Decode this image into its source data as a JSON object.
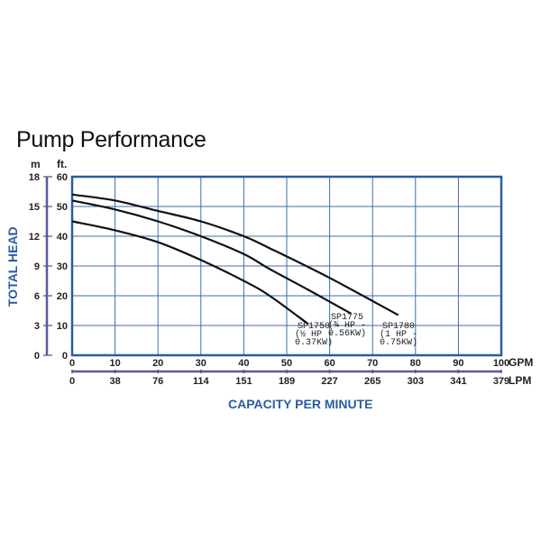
{
  "chart_data": {
    "type": "line",
    "title": "Pump Performance",
    "xlabel": "CAPACITY PER MINUTE",
    "ylabel": "TOTAL HEAD",
    "x_unit": "GPM",
    "x2_unit": "LPM",
    "y_unit": "ft.",
    "y2_unit": "m",
    "xlim": [
      0,
      100
    ],
    "ylim": [
      0,
      60
    ],
    "grid": true,
    "x_ticks": [
      0,
      10,
      20,
      30,
      40,
      50,
      60,
      70,
      80,
      90,
      100
    ],
    "x2_ticks": [
      "0",
      "38",
      "76",
      "114",
      "151",
      "189",
      "227",
      "265",
      "303",
      "341",
      "379"
    ],
    "y_ticks": [
      0,
      10,
      20,
      30,
      40,
      50,
      60
    ],
    "y2_ticks": [
      "0",
      "3",
      "6",
      "9",
      "12",
      "15",
      "18"
    ],
    "series": [
      {
        "name": "SP1750",
        "label_lines": [
          "SP1750",
          "(½ HP -",
          "0.37KW)"
        ],
        "x": [
          0,
          10,
          20,
          30,
          40,
          46,
          55
        ],
        "y": [
          45,
          42,
          38,
          32,
          25,
          20,
          10.5
        ]
      },
      {
        "name": "SP1775",
        "label_lines": [
          "SP1775",
          "(¾ HP -",
          "0.56KW)"
        ],
        "x": [
          0,
          10,
          20,
          30,
          40,
          46,
          55,
          65
        ],
        "y": [
          52,
          49,
          45,
          40,
          34,
          29,
          22,
          14
        ]
      },
      {
        "name": "SP1780",
        "label_lines": [
          "SP1780",
          "(1 HP -",
          "0.75KW)"
        ],
        "x": [
          0,
          10,
          20,
          30,
          40,
          46,
          60,
          76
        ],
        "y": [
          54,
          52,
          48.5,
          45,
          40,
          36,
          26,
          13.5
        ]
      }
    ],
    "colors": {
      "axis": "#2a5d9f",
      "grid": "#3f6ea8",
      "line": "#111111"
    }
  }
}
